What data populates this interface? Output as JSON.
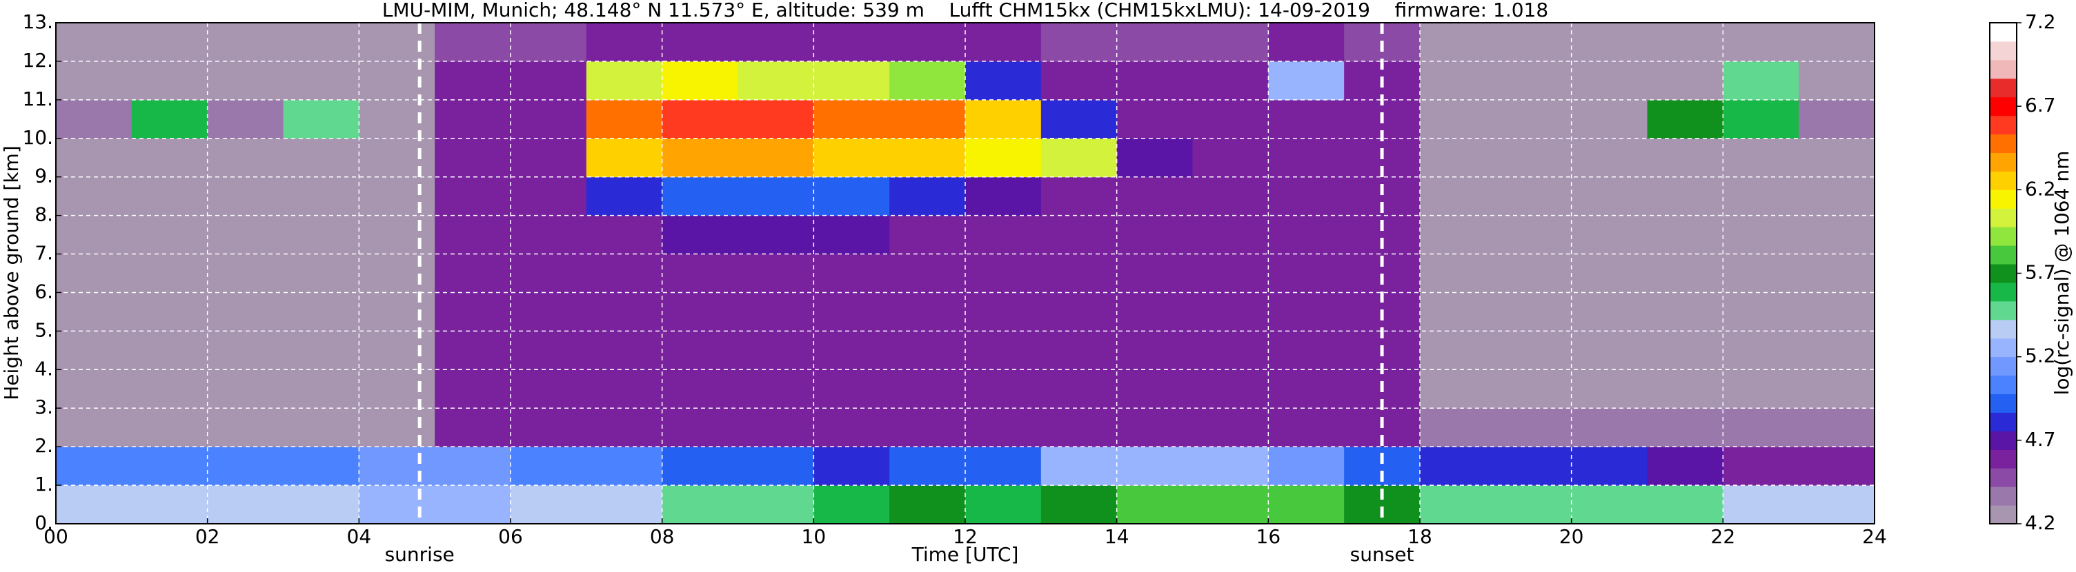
{
  "chart_data": {
    "type": "heatmap",
    "title": "LMU-MIM, Munich; 48.148° N 11.573° E, altitude: 539 m    Lufft CHM15kx (CHM15kxLMU): 14-09-2019    firmware: 1.018",
    "x_label": "Time [UTC]",
    "y_label": "Height above ground [km]",
    "xlim": [
      0,
      24
    ],
    "ylim": [
      0,
      13
    ],
    "xticks": [
      {
        "value": 0,
        "label": "00"
      },
      {
        "value": 2,
        "label": "02"
      },
      {
        "value": 4,
        "label": "04"
      },
      {
        "value": 6,
        "label": "06"
      },
      {
        "value": 8,
        "label": "08"
      },
      10,
      12,
      14,
      16,
      18,
      20,
      22,
      24
    ],
    "yticks": [
      {
        "value": 0,
        "label": "0."
      },
      {
        "value": 1,
        "label": "1."
      },
      {
        "value": 2,
        "label": "2."
      },
      {
        "value": 3,
        "label": "3."
      },
      {
        "value": 4,
        "label": "4."
      },
      {
        "value": 5,
        "label": "5."
      },
      {
        "value": 6,
        "label": "6."
      },
      {
        "value": 7,
        "label": "7."
      },
      {
        "value": 8,
        "label": "8."
      },
      {
        "value": 9,
        "label": "9."
      },
      {
        "value": 10,
        "label": "10."
      },
      {
        "value": 11,
        "label": "11."
      },
      {
        "value": 12,
        "label": "12."
      },
      {
        "value": 13,
        "label": "13."
      }
    ],
    "grid": true,
    "x_bins": [
      0,
      1,
      2,
      3,
      4,
      5,
      6,
      7,
      8,
      9,
      10,
      11,
      12,
      13,
      14,
      15,
      16,
      17,
      18,
      19,
      20,
      21,
      22,
      23,
      24
    ],
    "y_bins": [
      0,
      1,
      2,
      3,
      4,
      5,
      6,
      7,
      8,
      9,
      10,
      11,
      12,
      13
    ],
    "z": [
      [
        5.4,
        5.4,
        5.4,
        5.4,
        5.3,
        5.3,
        5.4,
        5.4,
        5.5,
        5.5,
        5.6,
        5.7,
        5.6,
        5.7,
        5.8,
        5.8,
        5.8,
        5.7,
        5.5,
        5.5,
        5.5,
        5.5,
        5.4,
        5.4
      ],
      [
        5.0,
        5.0,
        5.0,
        5.0,
        5.1,
        5.1,
        5.0,
        5.0,
        4.9,
        4.9,
        4.8,
        4.9,
        4.9,
        5.2,
        5.3,
        5.3,
        5.1,
        4.9,
        4.8,
        4.8,
        4.8,
        4.7,
        4.6,
        4.6
      ],
      [
        4.3,
        4.3,
        4.3,
        4.3,
        4.3,
        4.6,
        4.6,
        4.6,
        4.6,
        4.6,
        4.6,
        4.6,
        4.6,
        4.6,
        4.6,
        4.6,
        4.6,
        4.6,
        4.4,
        4.4,
        4.4,
        4.4,
        4.4,
        4.4
      ],
      [
        4.3,
        4.3,
        4.3,
        4.3,
        4.3,
        4.6,
        4.6,
        4.6,
        4.6,
        4.6,
        4.6,
        4.6,
        4.6,
        4.6,
        4.6,
        4.6,
        4.6,
        4.6,
        4.3,
        4.3,
        4.3,
        4.3,
        4.3,
        4.3
      ],
      [
        4.3,
        4.3,
        4.3,
        4.3,
        4.3,
        4.6,
        4.6,
        4.6,
        4.6,
        4.6,
        4.6,
        4.6,
        4.6,
        4.6,
        4.6,
        4.6,
        4.6,
        4.6,
        4.3,
        4.3,
        4.3,
        4.3,
        4.3,
        4.3
      ],
      [
        4.3,
        4.3,
        4.3,
        4.3,
        4.3,
        4.6,
        4.6,
        4.6,
        4.6,
        4.6,
        4.6,
        4.6,
        4.6,
        4.6,
        4.6,
        4.6,
        4.6,
        4.6,
        4.3,
        4.3,
        4.3,
        4.3,
        4.3,
        4.3
      ],
      [
        4.3,
        4.3,
        4.3,
        4.3,
        4.3,
        4.6,
        4.6,
        4.6,
        4.6,
        4.6,
        4.6,
        4.6,
        4.6,
        4.6,
        4.6,
        4.6,
        4.6,
        4.6,
        4.3,
        4.3,
        4.3,
        4.3,
        4.3,
        4.3
      ],
      [
        4.3,
        4.3,
        4.3,
        4.3,
        4.3,
        4.6,
        4.6,
        4.6,
        4.7,
        4.7,
        4.7,
        4.6,
        4.6,
        4.6,
        4.6,
        4.6,
        4.6,
        4.6,
        4.3,
        4.3,
        4.3,
        4.3,
        4.3,
        4.3
      ],
      [
        4.3,
        4.3,
        4.3,
        4.3,
        4.3,
        4.6,
        4.6,
        4.8,
        4.9,
        4.9,
        4.9,
        4.8,
        4.7,
        4.6,
        4.6,
        4.6,
        4.6,
        4.6,
        4.3,
        4.3,
        4.3,
        4.3,
        4.3,
        4.3
      ],
      [
        4.3,
        4.3,
        4.3,
        4.3,
        4.3,
        4.6,
        4.6,
        6.2,
        6.4,
        6.4,
        6.3,
        6.2,
        6.1,
        6.0,
        4.7,
        4.6,
        4.6,
        4.6,
        4.3,
        4.3,
        4.3,
        4.3,
        4.3,
        4.3
      ],
      [
        4.4,
        5.6,
        4.4,
        5.5,
        4.3,
        4.6,
        4.6,
        6.5,
        6.6,
        6.6,
        6.5,
        6.5,
        6.3,
        4.8,
        4.6,
        4.6,
        4.6,
        4.6,
        4.3,
        4.3,
        4.3,
        5.7,
        5.6,
        4.4
      ],
      [
        4.3,
        4.3,
        4.3,
        4.3,
        4.3,
        4.6,
        4.6,
        6.0,
        6.1,
        6.0,
        6.0,
        5.9,
        4.8,
        4.6,
        4.6,
        4.6,
        5.2,
        4.6,
        4.3,
        4.3,
        4.3,
        4.3,
        5.5,
        4.3
      ],
      [
        4.3,
        4.3,
        4.3,
        4.3,
        4.3,
        4.5,
        4.5,
        4.6,
        4.6,
        4.6,
        4.6,
        4.6,
        4.6,
        4.5,
        4.5,
        4.5,
        4.6,
        4.5,
        4.3,
        4.3,
        4.3,
        4.3,
        4.3,
        4.3
      ]
    ],
    "annotations": [
      {
        "text": "sunrise",
        "x": 4.8
      },
      {
        "text": "sunset",
        "x": 17.5
      }
    ],
    "colorbar": {
      "label": "log(rc-signal) @ 1064 nm",
      "lim": [
        4.2,
        7.2
      ],
      "ticks": [
        4.2,
        4.7,
        5.2,
        5.7,
        6.2,
        6.7,
        7.2
      ],
      "colors": [
        "#a896b0",
        "#9a78ac",
        "#8a4aa6",
        "#7a229e",
        "#5a14a6",
        "#2a2ad6",
        "#2460f2",
        "#4a82ff",
        "#7098ff",
        "#98b4ff",
        "#b8ccf4",
        "#60d890",
        "#18b848",
        "#10901c",
        "#48c83c",
        "#90e63c",
        "#d2f23c",
        "#f8f400",
        "#ffd000",
        "#ffa400",
        "#ff7000",
        "#ff3a20",
        "#ff0000",
        "#e82c2c",
        "#f0b8b8",
        "#f4d4d4",
        "#ffffff"
      ]
    }
  }
}
